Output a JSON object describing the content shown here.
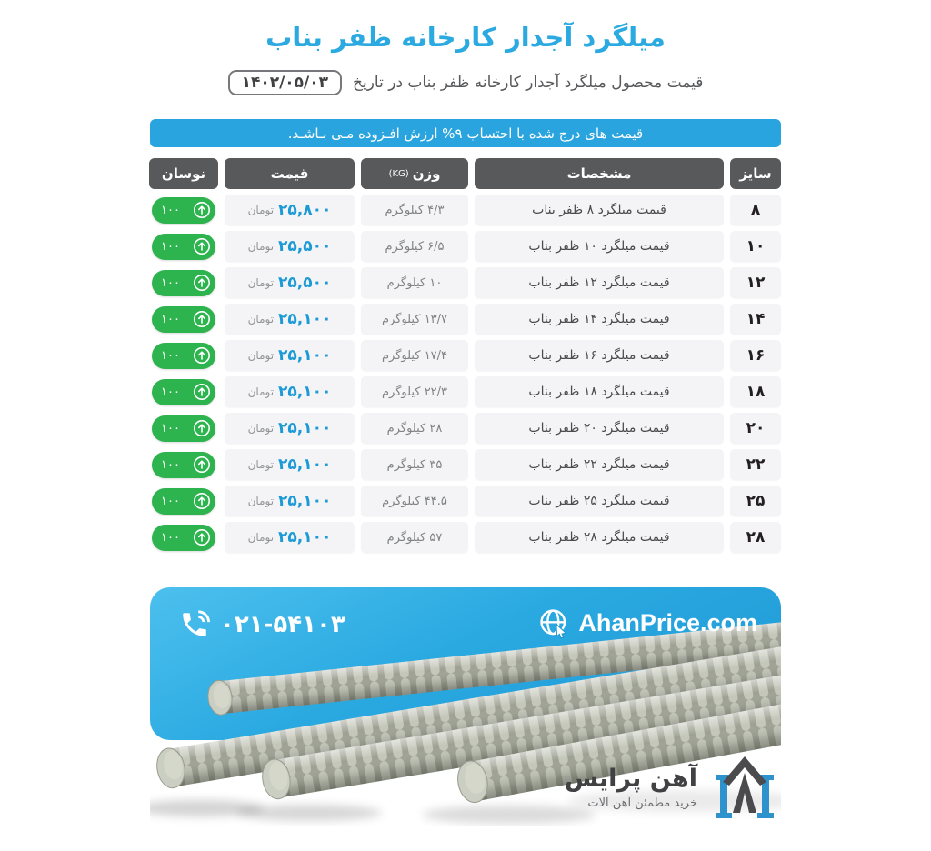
{
  "page": {
    "title": "میلگرد آجدار کارخانه ظفر بناب",
    "subtitle": "قیمت محصول میلگرد آجدار کارخانه ظفر بناب در تاریخ",
    "date_badge": "۱۴۰۲/۰۵/۰۳",
    "notice": "قیمت های درج شده با احتساب ۹% ارزش افـزوده مـی بـاشـد."
  },
  "table": {
    "headers": {
      "size": "سایز",
      "specs": "مشخصات",
      "weight": "وزن",
      "weight_unit": "(KG)",
      "price": "قیمت",
      "fluctuation": "نوسان"
    },
    "currency_label": "تومان",
    "rows": [
      {
        "size": "۸",
        "spec": "قیمت میلگرد ۸ ظفر بناب",
        "weight": "۴/۳ کیلوگرم",
        "price": "۲۵,۸۰۰",
        "change": "۱۰۰",
        "trend": "up"
      },
      {
        "size": "۱۰",
        "spec": "قیمت میلگرد ۱۰ ظفر بناب",
        "weight": "۶/۵ کیلوگرم",
        "price": "۲۵,۵۰۰",
        "change": "۱۰۰",
        "trend": "up"
      },
      {
        "size": "۱۲",
        "spec": "قیمت میلگرد ۱۲ ظفر بناب",
        "weight": "۱۰ کیلوگرم",
        "price": "۲۵,۵۰۰",
        "change": "۱۰۰",
        "trend": "up"
      },
      {
        "size": "۱۴",
        "spec": "قیمت میلگرد ۱۴ ظفر بناب",
        "weight": "۱۳/۷ کیلوگرم",
        "price": "۲۵,۱۰۰",
        "change": "۱۰۰",
        "trend": "up"
      },
      {
        "size": "۱۶",
        "spec": "قیمت میلگرد ۱۶ ظفر بناب",
        "weight": "۱۷/۴ کیلوگرم",
        "price": "۲۵,۱۰۰",
        "change": "۱۰۰",
        "trend": "up"
      },
      {
        "size": "۱۸",
        "spec": "قیمت میلگرد ۱۸ ظفر بناب",
        "weight": "۲۲/۳ کیلوگرم",
        "price": "۲۵,۱۰۰",
        "change": "۱۰۰",
        "trend": "up"
      },
      {
        "size": "۲۰",
        "spec": "قیمت میلگرد ۲۰ ظفر بناب",
        "weight": "۲۸ کیلوگرم",
        "price": "۲۵,۱۰۰",
        "change": "۱۰۰",
        "trend": "up"
      },
      {
        "size": "۲۲",
        "spec": "قیمت میلگرد ۲۲ ظفر بناب",
        "weight": "۳۵ کیلوگرم",
        "price": "۲۵,۱۰۰",
        "change": "۱۰۰",
        "trend": "up"
      },
      {
        "size": "۲۵",
        "spec": "قیمت میلگرد ۲۵ ظفر بناب",
        "weight": "۴۴.۵ کیلوگرم",
        "price": "۲۵,۱۰۰",
        "change": "۱۰۰",
        "trend": "up"
      },
      {
        "size": "۲۸",
        "spec": "قیمت میلگرد ۲۸ ظفر بناب",
        "weight": "۵۷ کیلوگرم",
        "price": "۲۵,۱۰۰",
        "change": "۱۰۰",
        "trend": "up"
      }
    ]
  },
  "banner": {
    "phone": "۰۲۱-۵۴۱۰۳",
    "website": "AhanPrice.com",
    "logo_title": "آهن پرایس",
    "logo_tagline": "خرید مطمئن آهن آلات"
  },
  "colors": {
    "accent_blue": "#2BA9E1",
    "notice_blue": "#29A4DE",
    "header_gray": "#58595B",
    "cell_gray": "#F4F4F6",
    "price_blue": "#1C9AD6",
    "badge_green": "#2DB44F",
    "banner_blue": "#29A7E0",
    "logo_blue": "#2E93CC",
    "logo_dark": "#4B4B4D"
  }
}
